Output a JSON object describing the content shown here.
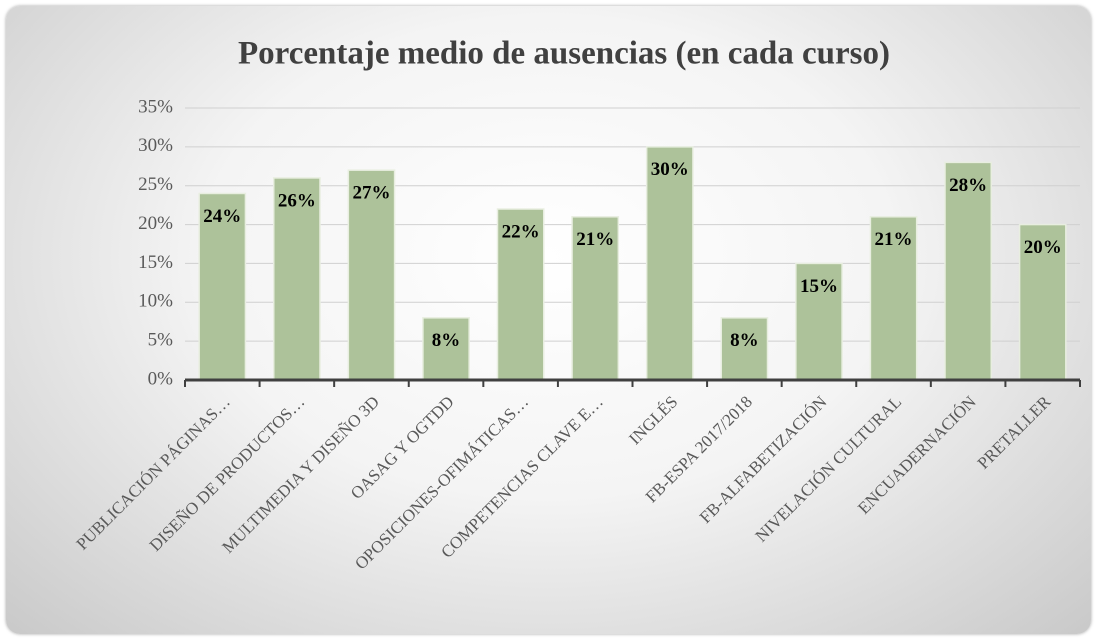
{
  "chart_data": {
    "type": "bar",
    "title": "Porcentaje medio de ausencias (en cada curso)",
    "categories": [
      "PUBLICACIÓN PÁGINAS…",
      "DISEÑO DE PRODUCTOS…",
      "MULTIMEDIA Y DISEÑO 3D",
      "OASAG Y OGTDD",
      "OPOSICIONES-OFIMÁTICAS…",
      "COMPETENCIAS CLAVE E…",
      "INGLÉS",
      "FB-ESPA 2017/2018",
      "FB-ALFABETIZACIÓN",
      "NIVELACIÓN CULTURAL",
      "ENCUADERNACIÓN",
      "PRETALLER"
    ],
    "values": [
      24,
      26,
      27,
      8,
      22,
      21,
      30,
      8,
      15,
      21,
      28,
      20
    ],
    "value_labels": [
      "24%",
      "26%",
      "27%",
      "8%",
      "22%",
      "21%",
      "30%",
      "8%",
      "15%",
      "21%",
      "28%",
      "20%"
    ],
    "color": "#adc29a",
    "ylim": [
      0,
      35
    ],
    "yticks": [
      {
        "value": 0,
        "label": "0%"
      },
      {
        "value": 5,
        "label": "5%"
      },
      {
        "value": 10,
        "label": "10%"
      },
      {
        "value": 15,
        "label": "15%"
      },
      {
        "value": 20,
        "label": "20%"
      },
      {
        "value": 25,
        "label": "25%"
      },
      {
        "value": 30,
        "label": "30%"
      },
      {
        "value": 35,
        "label": "35%"
      }
    ],
    "grid": true
  }
}
